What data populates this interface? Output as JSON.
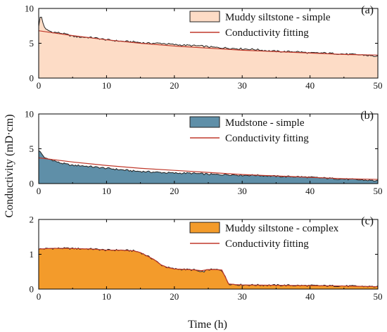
{
  "figure": {
    "ylabel": "Conductivity (mD·cm)",
    "xlabel": "Time (h)"
  },
  "chart_data": [
    {
      "type": "area",
      "panel_label": "(a)",
      "xlim": [
        0,
        50
      ],
      "ylim": [
        0,
        10
      ],
      "xticks": [
        "0",
        "10",
        "20",
        "30",
        "40",
        "50"
      ],
      "yticks": [
        "0",
        "5",
        "10"
      ],
      "legend_position": "top-right",
      "series": [
        {
          "name": "Muddy siltstone - simple",
          "kind": "area",
          "fill": "#fddcc6",
          "stroke": "#222222",
          "x": [
            0,
            0.3,
            0.6,
            1,
            2,
            3,
            4,
            5,
            6,
            8,
            10,
            12,
            14,
            16,
            18,
            20,
            22,
            24,
            26,
            28,
            30,
            32,
            34,
            36,
            38,
            40,
            42,
            44,
            46,
            48,
            50
          ],
          "y": [
            7.5,
            9.2,
            8.0,
            7.0,
            6.6,
            6.5,
            6.3,
            6.0,
            5.9,
            5.8,
            5.5,
            5.3,
            5.2,
            5.0,
            5.0,
            4.8,
            4.7,
            4.6,
            4.4,
            4.3,
            4.2,
            4.1,
            3.9,
            3.8,
            3.8,
            3.6,
            3.6,
            3.5,
            3.4,
            3.3,
            3.1
          ]
        },
        {
          "name": "Conductivity fitting",
          "kind": "line",
          "stroke": "#c0392b",
          "x": [
            0,
            5,
            10,
            15,
            20,
            25,
            30,
            35,
            40,
            45,
            50
          ],
          "y": [
            6.8,
            6.1,
            5.5,
            5.0,
            4.6,
            4.3,
            4.0,
            3.8,
            3.6,
            3.4,
            3.3
          ]
        }
      ]
    },
    {
      "type": "area",
      "panel_label": "(b)",
      "xlim": [
        0,
        50
      ],
      "ylim": [
        0,
        10
      ],
      "xticks": [
        "0",
        "10",
        "20",
        "30",
        "40",
        "50"
      ],
      "yticks": [
        "0",
        "5",
        "10"
      ],
      "legend_position": "top-right",
      "series": [
        {
          "name": "Mudstone - simple",
          "kind": "area",
          "fill": "#5f8fa8",
          "stroke": "#222222",
          "x": [
            0,
            0.5,
            1,
            2,
            3,
            4,
            5,
            6,
            8,
            10,
            12,
            14,
            16,
            18,
            20,
            22,
            24,
            26,
            28,
            30,
            32,
            34,
            36,
            38,
            40,
            42,
            44,
            46,
            48,
            50
          ],
          "y": [
            4.8,
            4.2,
            3.6,
            3.4,
            3.0,
            2.8,
            2.6,
            2.6,
            2.4,
            2.2,
            2.0,
            1.8,
            1.7,
            1.6,
            1.5,
            1.5,
            1.4,
            1.3,
            1.3,
            1.2,
            1.2,
            1.1,
            1.0,
            1.0,
            0.9,
            0.8,
            0.7,
            0.6,
            0.5,
            0.4
          ]
        },
        {
          "name": "Conductivity fitting",
          "kind": "line",
          "stroke": "#c0392b",
          "x": [
            0,
            5,
            10,
            15,
            20,
            25,
            30,
            35,
            40,
            45,
            50
          ],
          "y": [
            3.7,
            3.1,
            2.6,
            2.2,
            1.9,
            1.6,
            1.3,
            1.1,
            0.9,
            0.7,
            0.6
          ]
        }
      ]
    },
    {
      "type": "area",
      "panel_label": "(c)",
      "xlim": [
        0,
        50
      ],
      "ylim": [
        0,
        2
      ],
      "xticks": [
        "0",
        "10",
        "20",
        "30",
        "40",
        "50"
      ],
      "yticks": [
        "0",
        "1",
        "2"
      ],
      "legend_position": "top-right",
      "series": [
        {
          "name": "Muddy siltstone - complex",
          "kind": "area",
          "fill": "#f39b2b",
          "stroke": "#222222",
          "x": [
            0,
            2,
            4,
            6,
            8,
            10,
            12,
            14,
            15,
            16,
            17,
            18,
            19,
            20,
            21,
            22,
            23,
            24,
            25,
            26,
            27,
            27.5,
            28,
            29,
            30,
            35,
            40,
            45,
            50
          ],
          "y": [
            1.15,
            1.17,
            1.17,
            1.16,
            1.15,
            1.12,
            1.12,
            1.1,
            1.05,
            0.95,
            0.85,
            0.7,
            0.62,
            0.58,
            0.57,
            0.56,
            0.55,
            0.48,
            0.56,
            0.56,
            0.55,
            0.35,
            0.15,
            0.13,
            0.12,
            0.11,
            0.1,
            0.09,
            0.07
          ]
        },
        {
          "name": "Conductivity fitting",
          "kind": "line",
          "stroke": "#c0392b",
          "x": [
            0,
            2,
            4,
            6,
            8,
            10,
            12,
            14,
            15,
            16,
            17,
            18,
            19,
            20,
            21,
            22,
            23,
            24,
            25,
            26,
            27,
            27.5,
            28,
            29,
            30,
            35,
            40,
            45,
            50
          ],
          "y": [
            1.15,
            1.17,
            1.17,
            1.16,
            1.15,
            1.12,
            1.12,
            1.1,
            1.05,
            0.95,
            0.85,
            0.7,
            0.62,
            0.58,
            0.57,
            0.56,
            0.55,
            0.53,
            0.56,
            0.56,
            0.55,
            0.35,
            0.15,
            0.13,
            0.12,
            0.11,
            0.1,
            0.09,
            0.07
          ]
        }
      ]
    }
  ]
}
